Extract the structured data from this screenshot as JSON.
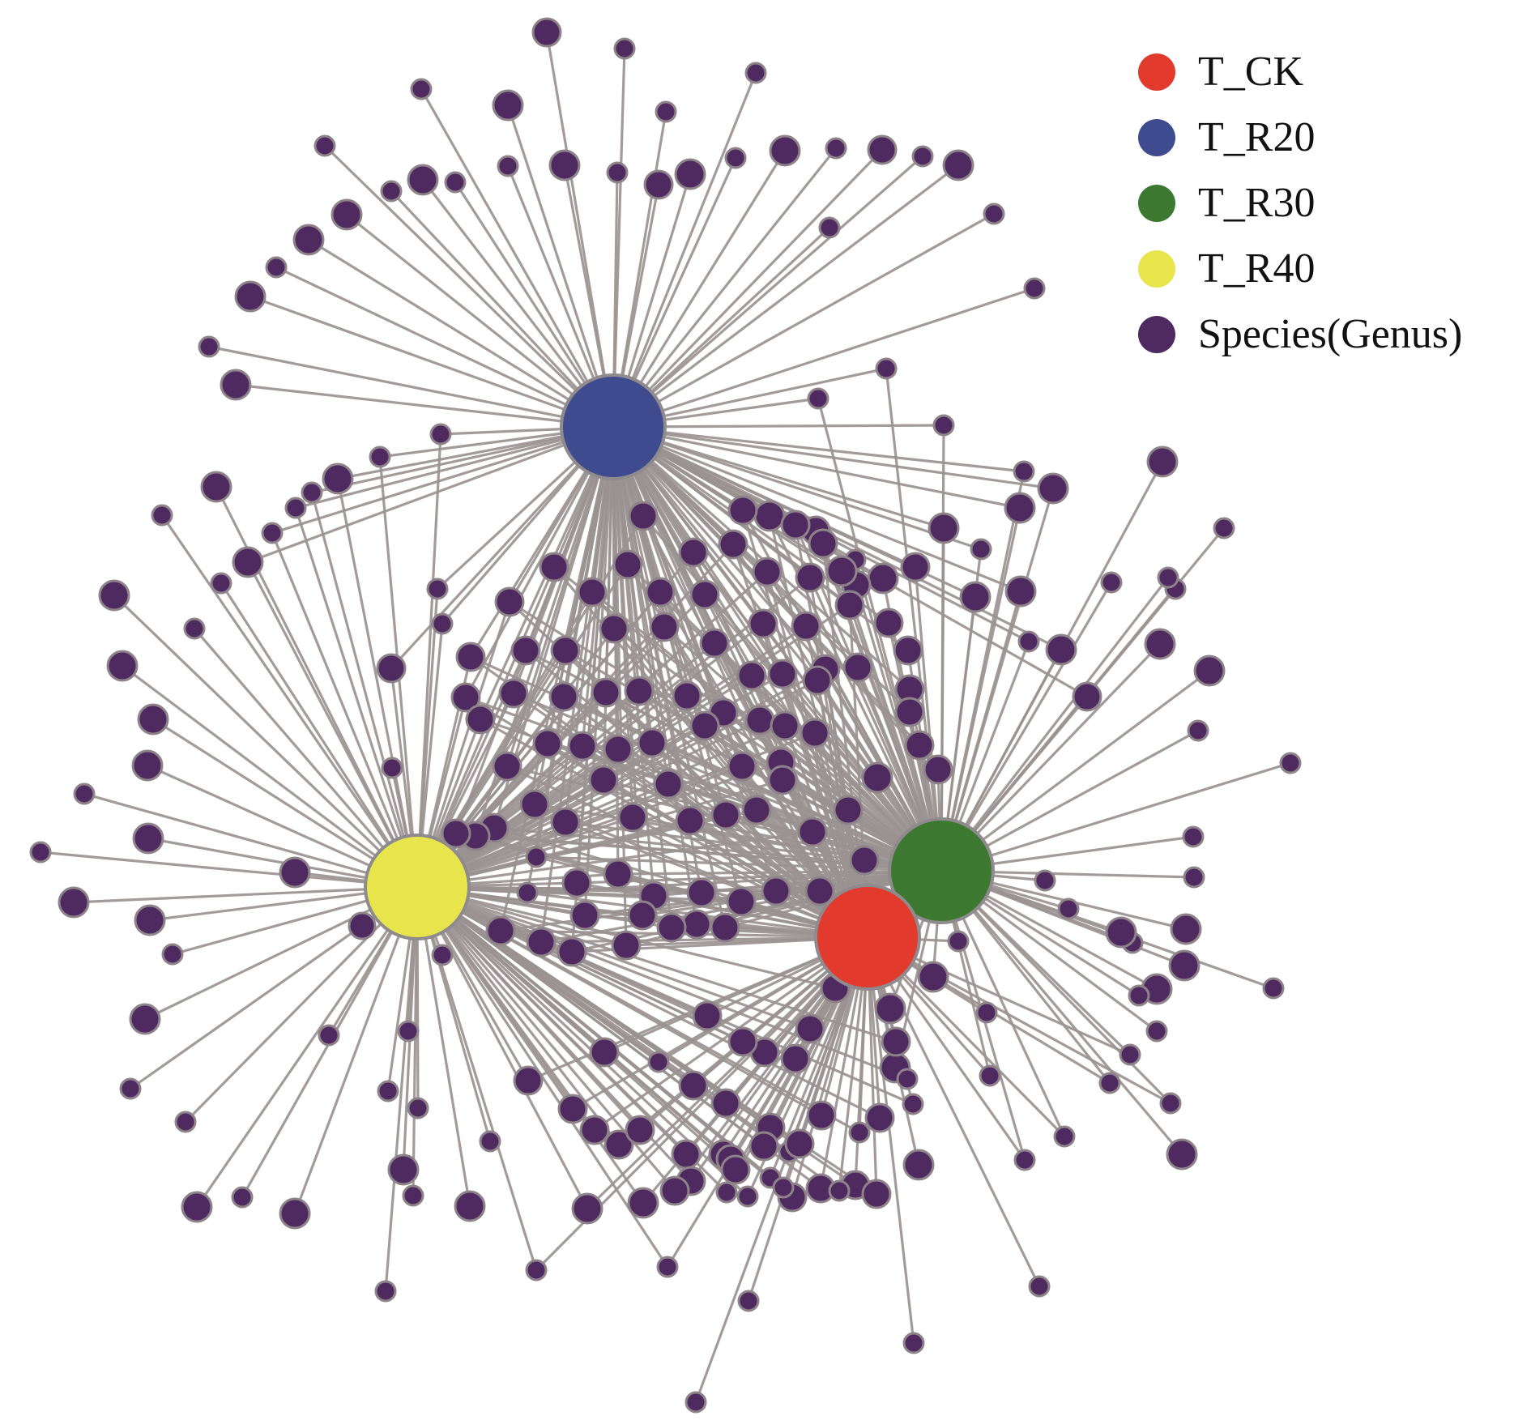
{
  "diagram": {
    "type": "network",
    "edge_color": "#9a9391",
    "species_color": "#4f2a60",
    "hubs": [
      {
        "id": "T_CK",
        "label": "T_CK",
        "color": "#e33a2e"
      },
      {
        "id": "T_R20",
        "label": "T_R20",
        "color": "#3f4b8f"
      },
      {
        "id": "T_R30",
        "label": "T_R30",
        "color": "#3c782f"
      },
      {
        "id": "T_R40",
        "label": "T_R40",
        "color": "#e8e54c"
      }
    ]
  },
  "legend": {
    "items": [
      {
        "label": "T_CK",
        "color": "#e33a2e"
      },
      {
        "label": "T_R20",
        "color": "#3f4b8f"
      },
      {
        "label": "T_R30",
        "color": "#3c782f"
      },
      {
        "label": "T_R40",
        "color": "#e8e54c"
      },
      {
        "label": "Species(Genus)",
        "color": "#4f2a60"
      }
    ]
  }
}
